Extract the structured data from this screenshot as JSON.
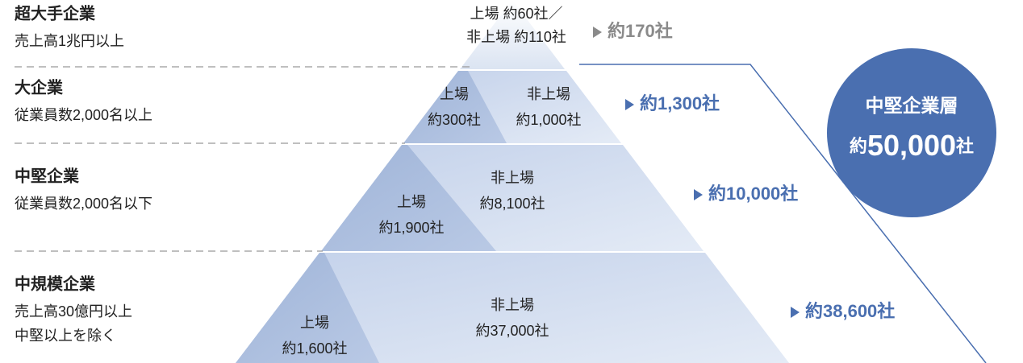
{
  "tiers": [
    {
      "name": "超大手企業",
      "criteria": [
        "売上高1兆円以上"
      ],
      "inner": [
        "上場 約60社／",
        "非上場 約110社"
      ],
      "total": "約170社"
    },
    {
      "name": "大企業",
      "criteria": [
        "従業員数2,000名以上"
      ],
      "listed": [
        "上場",
        "約300社"
      ],
      "unlisted": [
        "非上場",
        "約1,000社"
      ],
      "total": "約1,300社"
    },
    {
      "name": "中堅企業",
      "criteria": [
        "従業員数2,000名以下"
      ],
      "listed": [
        "上場",
        "約1,900社"
      ],
      "unlisted": [
        "非上場",
        "約8,100社"
      ],
      "total": "約10,000社"
    },
    {
      "name": "中規模企業",
      "criteria": [
        "売上高30億円以上",
        "中堅以上を除く"
      ],
      "listed": [
        "上場",
        "約1,600社"
      ],
      "unlisted": [
        "非上場",
        "約37,000社"
      ],
      "total": "約38,600社"
    }
  ],
  "circle": {
    "title": "中堅企業層",
    "prefix": "約",
    "number": "50,000",
    "suffix": "社"
  }
}
